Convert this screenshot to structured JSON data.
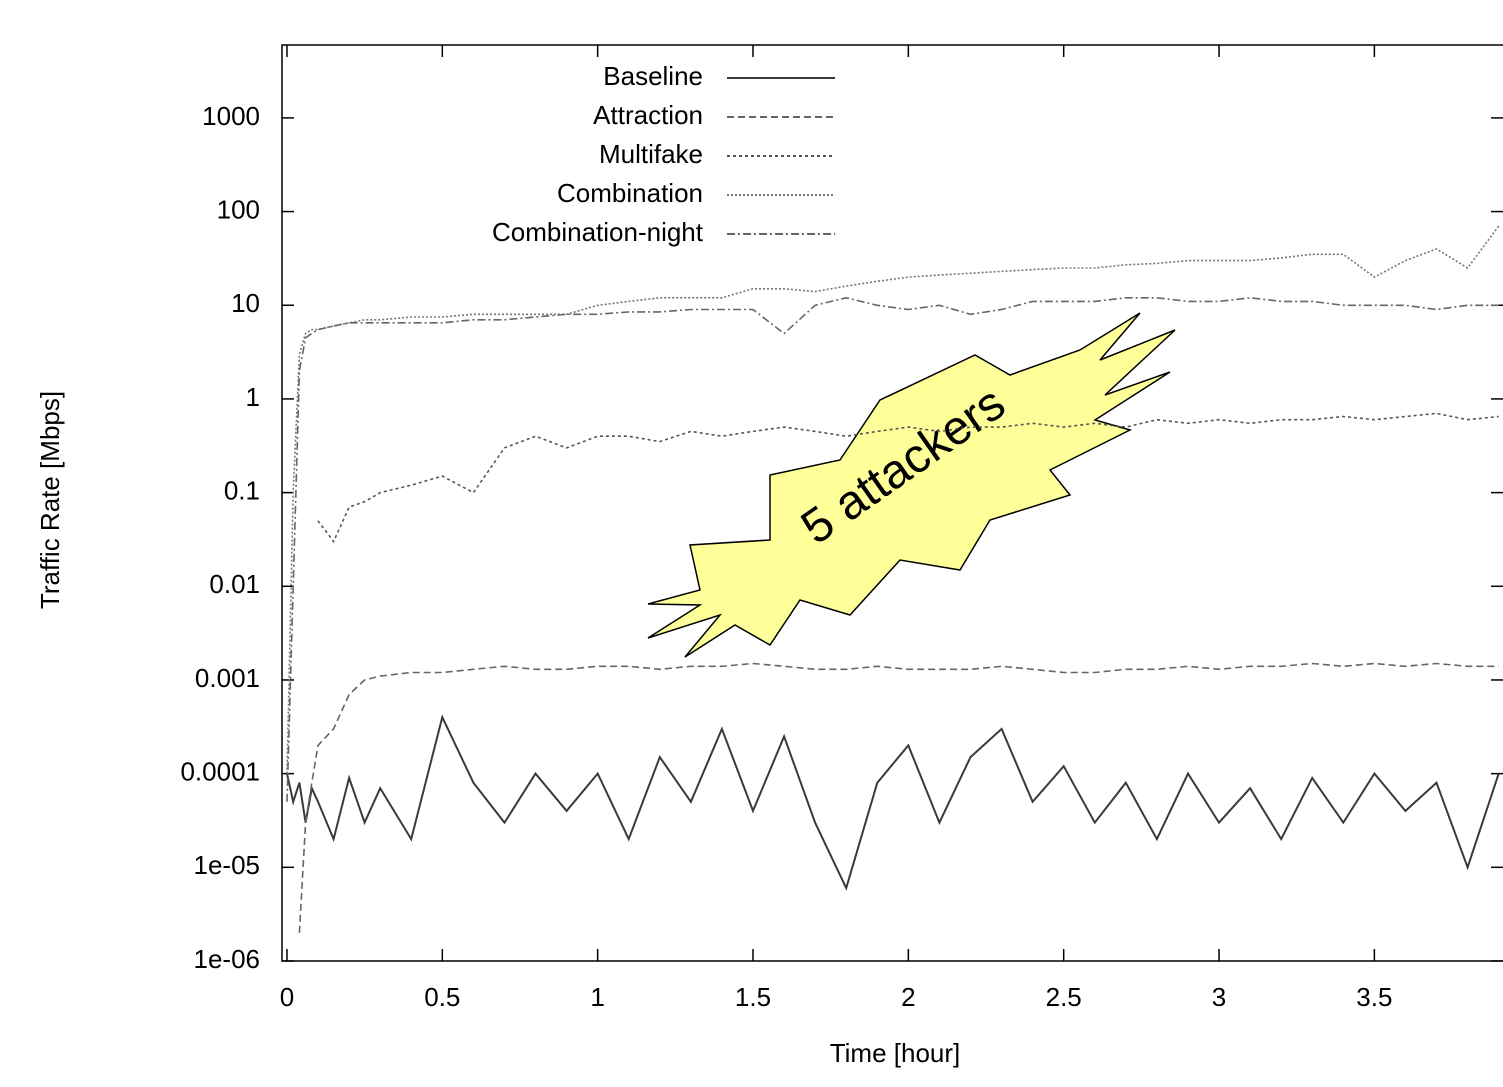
{
  "chart_data": {
    "type": "line",
    "xlabel": "Time [hour]",
    "ylabel": "Traffic Rate [Mbps]",
    "annotation": "5 attackers",
    "y_scale": "log",
    "legend": "top-left",
    "xlim": [
      -0.016,
      3.914
    ],
    "ylim": [
      1e-06,
      6000
    ],
    "xticks": [
      0,
      0.5,
      1,
      1.5,
      2,
      2.5,
      3,
      3.5
    ],
    "yticks": [
      {
        "value": 1e-06,
        "label": "1e-06"
      },
      {
        "value": 1e-05,
        "label": "1e-05"
      },
      0.0001,
      0.001,
      0.01,
      0.1,
      1,
      10,
      100,
      1000
    ],
    "x": [
      0,
      0.02,
      0.04,
      0.06,
      0.08,
      0.1,
      0.15,
      0.2,
      0.25,
      0.3,
      0.4,
      0.5,
      0.6,
      0.7,
      0.8,
      0.9,
      1.0,
      1.1,
      1.2,
      1.3,
      1.4,
      1.5,
      1.6,
      1.7,
      1.8,
      1.9,
      2.0,
      2.1,
      2.2,
      2.3,
      2.4,
      2.5,
      2.6,
      2.7,
      2.8,
      2.9,
      3.0,
      3.1,
      3.2,
      3.3,
      3.4,
      3.5,
      3.6,
      3.7,
      3.8,
      3.9
    ],
    "series": [
      {
        "name": "Baseline",
        "color": "#3a3a3a",
        "dash": "none",
        "values": [
          0.0001,
          5e-05,
          8e-05,
          3e-05,
          7e-05,
          5e-05,
          2e-05,
          9e-05,
          3e-05,
          7e-05,
          2e-05,
          0.0004,
          8e-05,
          3e-05,
          0.0001,
          4e-05,
          0.0001,
          2e-05,
          0.00015,
          5e-05,
          0.0003,
          4e-05,
          0.00025,
          3e-05,
          6e-06,
          8e-05,
          0.0002,
          3e-05,
          0.00015,
          0.0003,
          5e-05,
          0.00012,
          3e-05,
          8e-05,
          2e-05,
          0.0001,
          3e-05,
          7e-05,
          2e-05,
          9e-05,
          3e-05,
          0.0001,
          4e-05,
          8e-05,
          1e-05,
          0.0001
        ]
      },
      {
        "name": "Attraction",
        "color": "#666666",
        "dash": "7,4",
        "values": [
          null,
          null,
          2e-06,
          3e-05,
          8e-05,
          0.0002,
          0.0003,
          0.0007,
          0.001,
          0.0011,
          0.0012,
          0.0012,
          0.0013,
          0.0014,
          0.0013,
          0.0013,
          0.0014,
          0.0014,
          0.0013,
          0.0014,
          0.0014,
          0.0015,
          0.0014,
          0.0013,
          0.0013,
          0.0014,
          0.0013,
          0.0013,
          0.0013,
          0.0014,
          0.0013,
          0.0012,
          0.0012,
          0.0013,
          0.0013,
          0.0014,
          0.0013,
          0.0014,
          0.0014,
          0.0015,
          0.0014,
          0.0015,
          0.0014,
          0.0015,
          0.0014,
          0.0014
        ]
      },
      {
        "name": "Multifake",
        "color": "#555555",
        "dash": "3,3",
        "values": [
          null,
          null,
          null,
          null,
          null,
          0.05,
          0.03,
          0.07,
          0.08,
          0.1,
          0.12,
          0.15,
          0.1,
          0.3,
          0.4,
          0.3,
          0.4,
          0.4,
          0.35,
          0.45,
          0.4,
          0.45,
          0.5,
          0.45,
          0.4,
          0.45,
          0.5,
          0.45,
          0.5,
          0.5,
          0.55,
          0.5,
          0.55,
          0.5,
          0.6,
          0.55,
          0.6,
          0.55,
          0.6,
          0.6,
          0.65,
          0.6,
          0.65,
          0.7,
          0.6,
          0.65
        ]
      },
      {
        "name": "Combination",
        "color": "#777777",
        "dash": "2,2",
        "values": [
          0.0001,
          0.1,
          3,
          5,
          5.5,
          5.5,
          6,
          6.5,
          7,
          7,
          7.5,
          7.5,
          8,
          8,
          8,
          8,
          10,
          11,
          12,
          12,
          12,
          15,
          15,
          14,
          16,
          18,
          20,
          21,
          22,
          23,
          24,
          25,
          25,
          27,
          28,
          30,
          30,
          30,
          32,
          35,
          35,
          20,
          30,
          40,
          25,
          70
        ]
      },
      {
        "name": "Combination-night",
        "color": "#666666",
        "dash": "8,3,2,3",
        "values": [
          5e-05,
          0.01,
          2,
          4.5,
          5,
          5.5,
          6,
          6.5,
          6.5,
          6.5,
          6.5,
          6.5,
          7,
          7,
          7.5,
          8,
          8,
          8.5,
          8.5,
          9,
          9,
          9,
          5,
          10,
          12,
          10,
          9,
          10,
          8,
          9,
          11,
          11,
          11,
          12,
          12,
          11,
          11,
          12,
          11,
          11,
          10,
          10,
          10,
          9,
          10,
          10
        ]
      }
    ]
  }
}
